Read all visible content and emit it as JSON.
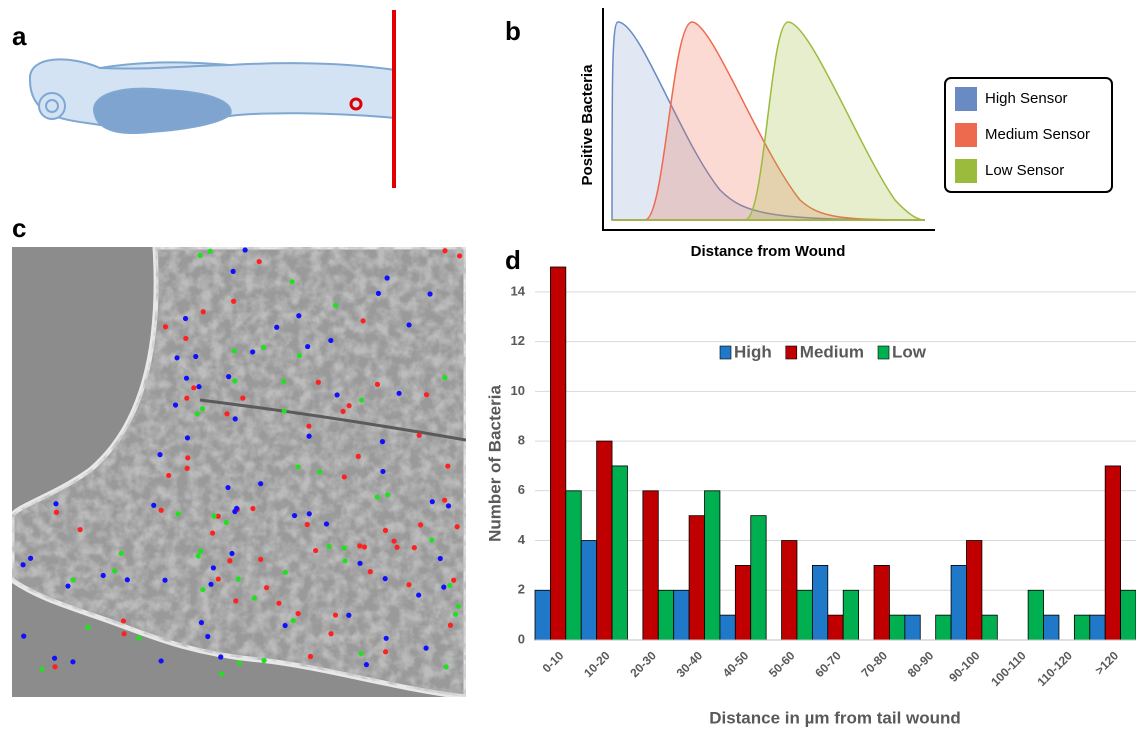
{
  "labels": [
    "a",
    "b",
    "c",
    "d"
  ],
  "diagram": {
    "ylabel": "Positive Bacteria",
    "xlabel": "Distance from Wound",
    "legend": [
      "High Sensor",
      "Medium Sensor",
      "Low Sensor"
    ],
    "colors": [
      "#6a8ac4",
      "#ee6a4f",
      "#9bbb3c"
    ]
  },
  "chart_data": {
    "type": "bar",
    "xlabel": "Distance in µm from tail wound",
    "ylabel": "Number of Bacteria",
    "categories": [
      "0-10",
      "10-20",
      "20-30",
      "30-40",
      "40-50",
      "50-60",
      "60-70",
      "70-80",
      "80-90",
      "90-100",
      "100-110",
      "110-120",
      ">120"
    ],
    "series": [
      {
        "name": "High",
        "color": "#1f78c8",
        "values": [
          2,
          4,
          0,
          2,
          1,
          0,
          3,
          0,
          1,
          3,
          0,
          1,
          1
        ]
      },
      {
        "name": "Medium",
        "color": "#c00000",
        "values": [
          15,
          8,
          6,
          5,
          3,
          4,
          1,
          3,
          0,
          4,
          0,
          0,
          7
        ]
      },
      {
        "name": "Low",
        "color": "#00b050",
        "values": [
          6,
          7,
          2,
          6,
          5,
          2,
          2,
          1,
          1,
          1,
          2,
          1,
          2
        ]
      }
    ],
    "ylim": [
      0,
      15
    ],
    "yticks": [
      0,
      2,
      4,
      6,
      8,
      10,
      12,
      14
    ],
    "grid": true,
    "legend": "top"
  }
}
